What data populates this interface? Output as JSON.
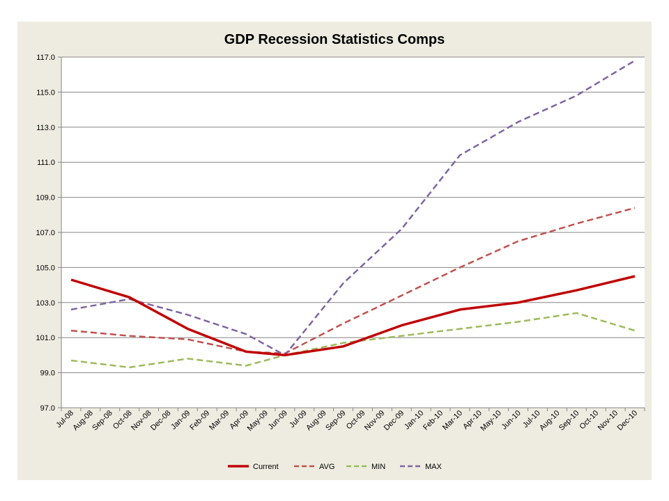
{
  "chart_data": {
    "type": "line",
    "title": "GDP Recession Statistics Comps",
    "xlabel": "",
    "ylabel": "",
    "ylim": [
      97.0,
      117.0
    ],
    "y_ticks": [
      "97.0",
      "99.0",
      "101.0",
      "103.0",
      "105.0",
      "107.0",
      "109.0",
      "111.0",
      "113.0",
      "115.0",
      "117.0"
    ],
    "categories": [
      "Jul-08",
      "Aug-08",
      "Sep-08",
      "Oct-08",
      "Nov-08",
      "Dec-08",
      "Jan-09",
      "Feb-09",
      "Mar-09",
      "Apr-09",
      "May-09",
      "Jun-09",
      "Jul-09",
      "Aug-09",
      "Sep-09",
      "Oct-09",
      "Nov-09",
      "Dec-09",
      "Jan-10",
      "Feb-10",
      "Mar-10",
      "Apr-10",
      "May-10",
      "Jun-10",
      "Jul-10",
      "Aug-10",
      "Sep-10",
      "Oct-10",
      "Nov-10",
      "Dec-10"
    ],
    "grid": true,
    "legend_position": "bottom",
    "series": [
      {
        "name": "Current",
        "color": "#c00000",
        "style": "solid",
        "points": [
          [
            0,
            104.3
          ],
          [
            3,
            103.3
          ],
          [
            6,
            101.5
          ],
          [
            9,
            100.2
          ],
          [
            11,
            100.0
          ],
          [
            14,
            100.5
          ],
          [
            17,
            101.7
          ],
          [
            20,
            102.6
          ],
          [
            23,
            103.0
          ],
          [
            26,
            103.7
          ],
          [
            29,
            104.5
          ]
        ]
      },
      {
        "name": "AVG",
        "color": "#c0504d",
        "style": "dashed",
        "points": [
          [
            0,
            101.4
          ],
          [
            3,
            101.1
          ],
          [
            6,
            100.9
          ],
          [
            9,
            100.2
          ],
          [
            11,
            100.1
          ],
          [
            14,
            101.8
          ],
          [
            17,
            103.4
          ],
          [
            20,
            105.0
          ],
          [
            23,
            106.5
          ],
          [
            26,
            107.5
          ],
          [
            29,
            108.4
          ]
        ]
      },
      {
        "name": "MIN",
        "color": "#9bbb59",
        "style": "dashed",
        "points": [
          [
            0,
            99.7
          ],
          [
            3,
            99.3
          ],
          [
            6,
            99.8
          ],
          [
            9,
            99.4
          ],
          [
            11,
            100.0
          ],
          [
            14,
            100.7
          ],
          [
            17,
            101.1
          ],
          [
            20,
            101.5
          ],
          [
            23,
            101.9
          ],
          [
            26,
            102.4
          ],
          [
            29,
            101.4
          ]
        ]
      },
      {
        "name": "MAX",
        "color": "#8064a2",
        "style": "dashed",
        "points": [
          [
            0,
            102.6
          ],
          [
            3,
            103.2
          ],
          [
            6,
            102.3
          ],
          [
            9,
            101.2
          ],
          [
            11,
            100.0
          ],
          [
            14,
            104.1
          ],
          [
            17,
            107.2
          ],
          [
            20,
            111.4
          ],
          [
            23,
            113.3
          ],
          [
            26,
            114.8
          ],
          [
            29,
            116.8
          ]
        ]
      }
    ]
  }
}
